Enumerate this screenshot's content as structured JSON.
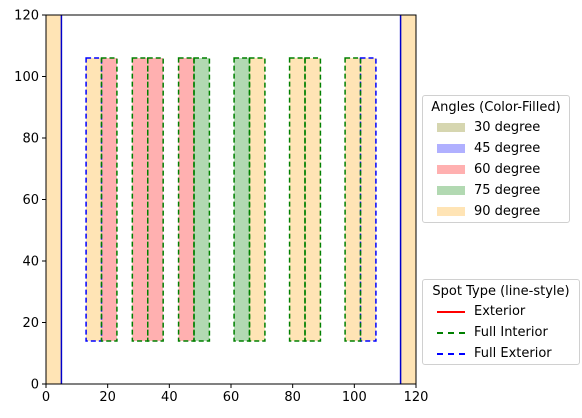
{
  "chart_data": {
    "type": "area",
    "xlim": [
      0,
      120
    ],
    "ylim": [
      0,
      120
    ],
    "x_ticks": [
      "0",
      "20",
      "40",
      "60",
      "80",
      "100",
      "120"
    ],
    "y_ticks": [
      "0",
      "20",
      "40",
      "60",
      "80",
      "100",
      "120"
    ],
    "grid": false,
    "colors": {
      "30": "#d6d6b0",
      "45": "#b0b0ff",
      "60": "#ffb0b0",
      "75": "#b2d9b2",
      "90": "#ffe4b5",
      "exterior_line": "#ff0000",
      "full_interior_line": "#008000",
      "full_exterior_line": "#0000ff",
      "edge_band_line": "#0000cc"
    },
    "edge_bands": [
      {
        "x": [
          0,
          5
        ],
        "y": [
          0,
          120
        ],
        "angle": 90
      },
      {
        "x": [
          115,
          120
        ],
        "y": [
          0,
          120
        ],
        "angle": 90
      }
    ],
    "filled_strips": [
      {
        "x": [
          13,
          18
        ],
        "y": [
          14,
          106
        ],
        "angle": 90
      },
      {
        "x": [
          18,
          23
        ],
        "y": [
          14,
          106
        ],
        "angle": 60
      },
      {
        "x": [
          28,
          33
        ],
        "y": [
          14,
          106
        ],
        "angle": 60
      },
      {
        "x": [
          33,
          38
        ],
        "y": [
          14,
          106
        ],
        "angle": 60
      },
      {
        "x": [
          43,
          48
        ],
        "y": [
          14,
          106
        ],
        "angle": 60
      },
      {
        "x": [
          48,
          53
        ],
        "y": [
          14,
          106
        ],
        "angle": 75
      },
      {
        "x": [
          61,
          66
        ],
        "y": [
          14,
          106
        ],
        "angle": 75
      },
      {
        "x": [
          66,
          71
        ],
        "y": [
          14,
          106
        ],
        "angle": 90
      },
      {
        "x": [
          79,
          84
        ],
        "y": [
          14,
          106
        ],
        "angle": 90
      },
      {
        "x": [
          84,
          89
        ],
        "y": [
          14,
          106
        ],
        "angle": 90
      },
      {
        "x": [
          97,
          102
        ],
        "y": [
          14,
          106
        ],
        "angle": 90
      },
      {
        "x": [
          102,
          107
        ],
        "y": [
          14,
          106
        ],
        "angle": 90
      }
    ],
    "full_exterior_boxes": [
      {
        "x": [
          13,
          18
        ],
        "y": [
          14,
          106
        ]
      },
      {
        "x": [
          102,
          107
        ],
        "y": [
          14,
          106
        ]
      }
    ],
    "full_interior_boxes": [
      {
        "x": [
          18,
          23
        ],
        "y": [
          14,
          106
        ]
      },
      {
        "x": [
          28,
          33
        ],
        "y": [
          14,
          106
        ]
      },
      {
        "x": [
          33,
          38
        ],
        "y": [
          14,
          106
        ]
      },
      {
        "x": [
          43,
          48
        ],
        "y": [
          14,
          106
        ]
      },
      {
        "x": [
          48,
          53
        ],
        "y": [
          14,
          106
        ]
      },
      {
        "x": [
          61,
          66
        ],
        "y": [
          14,
          106
        ]
      },
      {
        "x": [
          66,
          71
        ],
        "y": [
          14,
          106
        ]
      },
      {
        "x": [
          79,
          84
        ],
        "y": [
          14,
          106
        ]
      },
      {
        "x": [
          84,
          89
        ],
        "y": [
          14,
          106
        ]
      },
      {
        "x": [
          97,
          102
        ],
        "y": [
          14,
          106
        ]
      }
    ],
    "legends": [
      {
        "title": "Angles (Color-Filled)",
        "placement": "right",
        "entries": [
          {
            "label": "30 degree",
            "kind": "fill",
            "color": "#d6d6b0"
          },
          {
            "label": "45 degree",
            "kind": "fill",
            "color": "#b0b0ff"
          },
          {
            "label": "60 degree",
            "kind": "fill",
            "color": "#ffb0b0"
          },
          {
            "label": "75 degree",
            "kind": "fill",
            "color": "#b2d9b2"
          },
          {
            "label": "90 degree",
            "kind": "fill",
            "color": "#ffe4b5"
          }
        ]
      },
      {
        "title": "Spot Type (line-style)",
        "placement": "lower right",
        "entries": [
          {
            "label": "Exterior",
            "kind": "line",
            "style": "solid",
            "color": "#ff0000"
          },
          {
            "label": "Full Interior",
            "kind": "line",
            "style": "dashed",
            "color": "#008000"
          },
          {
            "label": "Full Exterior",
            "kind": "line",
            "style": "dashed",
            "color": "#0000ff"
          }
        ]
      }
    ]
  }
}
